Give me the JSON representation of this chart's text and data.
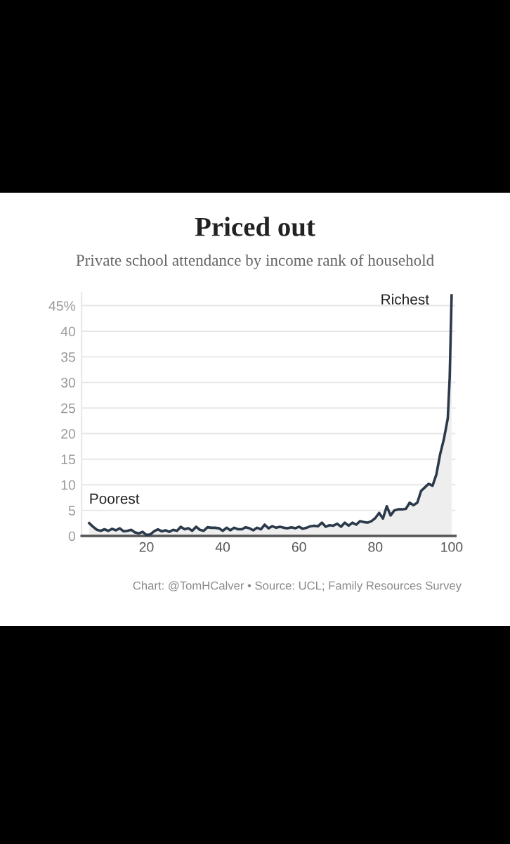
{
  "chart_data": {
    "type": "area",
    "title": "Priced out",
    "subtitle": "Private school attendance by income rank of household",
    "x": [
      5,
      6,
      7,
      8,
      9,
      10,
      11,
      12,
      13,
      14,
      15,
      16,
      17,
      18,
      19,
      20,
      21,
      22,
      23,
      24,
      25,
      26,
      27,
      28,
      29,
      30,
      31,
      32,
      33,
      34,
      35,
      36,
      37,
      38,
      39,
      40,
      41,
      42,
      43,
      44,
      45,
      46,
      47,
      48,
      49,
      50,
      51,
      52,
      53,
      54,
      55,
      56,
      57,
      58,
      59,
      60,
      61,
      62,
      63,
      64,
      65,
      66,
      67,
      68,
      69,
      70,
      71,
      72,
      73,
      74,
      75,
      76,
      77,
      78,
      79,
      80,
      81,
      82,
      83,
      84,
      85,
      86,
      87,
      88,
      89,
      90,
      91,
      92,
      93,
      94,
      95,
      96,
      97,
      98,
      99,
      99.5,
      100
    ],
    "series": [
      {
        "color": "#2b3a4a",
        "values": [
          2.5,
          1.8,
          1.2,
          1.0,
          1.3,
          1.0,
          1.4,
          1.1,
          1.5,
          0.9,
          1.0,
          1.2,
          0.7,
          0.5,
          0.8,
          0.2,
          0.3,
          0.9,
          1.3,
          0.9,
          1.1,
          0.8,
          1.2,
          1.0,
          1.8,
          1.3,
          1.5,
          1.0,
          1.8,
          1.2,
          1.0,
          1.7,
          1.6,
          1.6,
          1.5,
          1.0,
          1.6,
          1.1,
          1.6,
          1.3,
          1.3,
          1.7,
          1.5,
          1.1,
          1.6,
          1.3,
          2.2,
          1.5,
          1.9,
          1.6,
          1.8,
          1.6,
          1.5,
          1.7,
          1.5,
          1.8,
          1.4,
          1.6,
          1.9,
          2.0,
          1.9,
          2.6,
          1.8,
          2.1,
          2.0,
          2.4,
          1.8,
          2.6,
          2.0,
          2.6,
          2.2,
          2.9,
          2.7,
          2.6,
          2.9,
          3.5,
          4.5,
          3.4,
          5.8,
          4.0,
          5.0,
          5.2,
          5.2,
          5.3,
          6.5,
          6.0,
          6.5,
          8.8,
          9.5,
          10.2,
          9.8,
          12,
          16,
          19,
          23,
          31,
          47
        ]
      }
    ],
    "xlim": [
      3,
      101
    ],
    "xticks": [
      20,
      40,
      60,
      80,
      100
    ],
    "ylim": [
      0,
      47.5
    ],
    "yticks": [
      0,
      5,
      10,
      15,
      20,
      25,
      30,
      35,
      40,
      {
        "value": 45,
        "label": "45%"
      }
    ],
    "grid": "y",
    "annotations": [
      "Poorest",
      "Richest",
      "Chart: @TomHCalver • Source: UCL; Family Resources Survey"
    ]
  }
}
